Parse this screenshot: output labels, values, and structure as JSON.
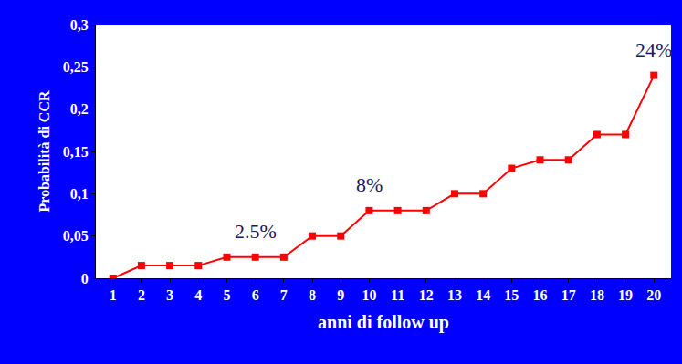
{
  "chart_data": {
    "type": "line",
    "x_label": "anni di follow up",
    "y_label": "Probabilità di CCR",
    "categories": [
      "1",
      "2",
      "3",
      "4",
      "5",
      "6",
      "7",
      "8",
      "9",
      "10",
      "11",
      "12",
      "13",
      "14",
      "15",
      "16",
      "17",
      "18",
      "19",
      "20"
    ],
    "values": [
      0,
      0.015,
      0.015,
      0.015,
      0.025,
      0.025,
      0.025,
      0.05,
      0.05,
      0.08,
      0.08,
      0.08,
      0.1,
      0.1,
      0.13,
      0.14,
      0.14,
      0.17,
      0.17,
      0.24
    ],
    "color": "#ff0000",
    "marker": "square",
    "ylim": [
      0,
      0.3
    ],
    "yticks": [
      0,
      {
        "value": 0.05,
        "label": "0,05"
      },
      {
        "value": 0.1,
        "label": "0,1"
      },
      {
        "value": 0.15,
        "label": "0,15"
      },
      {
        "value": 0.2,
        "label": "0,2"
      },
      {
        "value": 0.25,
        "label": "0,25"
      },
      {
        "value": 0.3,
        "label": "0,3"
      }
    ],
    "grid": false,
    "annotations": [
      {
        "text": "2.5%",
        "category": "6"
      },
      {
        "text": "8%",
        "category": "10"
      },
      {
        "text": "24%",
        "category": "20"
      }
    ]
  }
}
